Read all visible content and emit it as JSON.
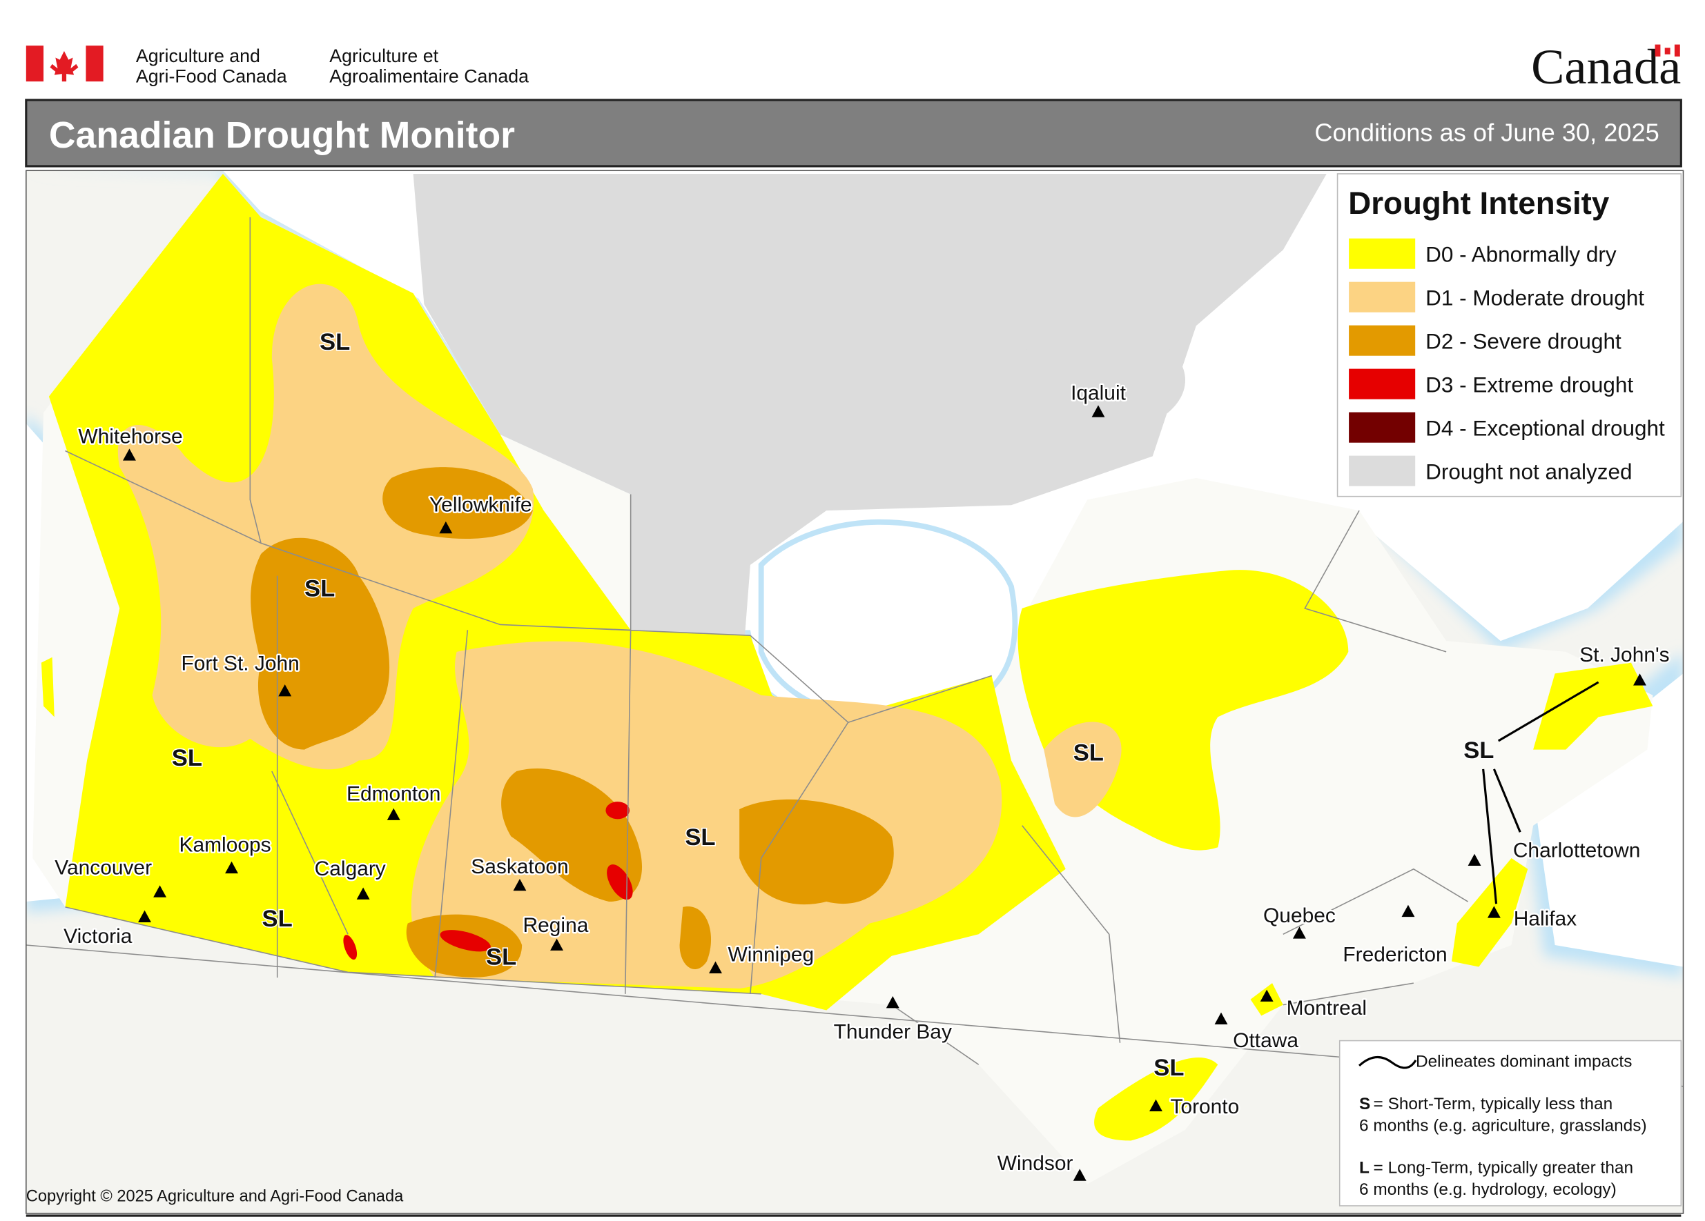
{
  "header": {
    "org_en": [
      "Agriculture and",
      "Agri-Food Canada"
    ],
    "org_fr": [
      "Agriculture et",
      "Agroalimentaire Canada"
    ],
    "wordmark": "Canada"
  },
  "title": "Canadian Drought Monitor",
  "date": "Conditions as of June 30, 2025",
  "legend": {
    "title": "Drought Intensity",
    "items": [
      {
        "label": "D0 - Abnormally dry",
        "color": "#ffff00"
      },
      {
        "label": "D1 - Moderate drought",
        "color": "#fcd383"
      },
      {
        "label": "D2 - Severe drought",
        "color": "#e39a00"
      },
      {
        "label": "D3 - Extreme drought",
        "color": "#e60000"
      },
      {
        "label": "D4 - Exceptional drought",
        "color": "#730000"
      },
      {
        "label": "Drought not analyzed",
        "color": "#dcdcdc"
      }
    ]
  },
  "cities": [
    "Whitehorse",
    "Yellowknife",
    "Fort St. John",
    "Edmonton",
    "Kamloops",
    "Calgary",
    "Vancouver",
    "Victoria",
    "Saskatoon",
    "Regina",
    "Winnipeg",
    "Thunder Bay",
    "Iqaluit",
    "Quebec",
    "Montreal",
    "Ottawa",
    "Toronto",
    "Windsor",
    "Fredericton",
    "Charlottetown",
    "Halifax",
    "St. John's"
  ],
  "impact_labels": [
    "SL",
    "SL",
    "SL",
    "SL",
    "SL",
    "SL",
    "SL",
    "SL",
    "SL"
  ],
  "notes": {
    "line_label": "Delineates dominant impacts",
    "short": {
      "key": "S",
      "lines": [
        "= Short-Term, typically less than",
        "6 months (e.g. agriculture, grasslands)"
      ]
    },
    "long": {
      "key": "L",
      "lines": [
        "= Long-Term, typically greater  than",
        "6 months (e.g. hydrology, ecology)"
      ]
    }
  },
  "copyright": "Copyright © 2025 Agriculture and Agri-Food Canada"
}
